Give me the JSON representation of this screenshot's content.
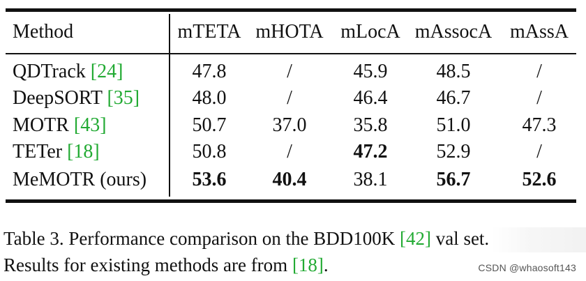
{
  "table": {
    "headers": [
      "Method",
      "mTETA",
      "mHOTA",
      "mLocA",
      "mAssocA",
      "mAssA"
    ],
    "rows": [
      {
        "method": "QDTrack",
        "ref": "[24]",
        "values": [
          "47.8",
          "/",
          "45.9",
          "48.5",
          "/"
        ]
      },
      {
        "method": "DeepSORT",
        "ref": "[35]",
        "values": [
          "48.0",
          "/",
          "46.4",
          "46.7",
          "/"
        ]
      },
      {
        "method": "MOTR",
        "ref": "[43]",
        "values": [
          "50.7",
          "37.0",
          "35.8",
          "51.0",
          "47.3"
        ]
      },
      {
        "method": "TETer",
        "ref": "[18]",
        "values": [
          "50.8",
          "/",
          "47.2",
          "52.9",
          "/"
        ]
      },
      {
        "method": "MeMOTR (ours)",
        "ref": "",
        "values": [
          "53.6",
          "40.4",
          "38.1",
          "56.7",
          "52.6"
        ]
      }
    ]
  },
  "caption": {
    "line1_a": "Table 3. Performance comparison on the BDD100K ",
    "line1_ref": "[42]",
    "line1_b": " val set.",
    "line2_a": "Results for existing methods are from ",
    "line2_ref": "[18]",
    "line2_b": "."
  },
  "watermark": "CSDN @whaosoft143"
}
